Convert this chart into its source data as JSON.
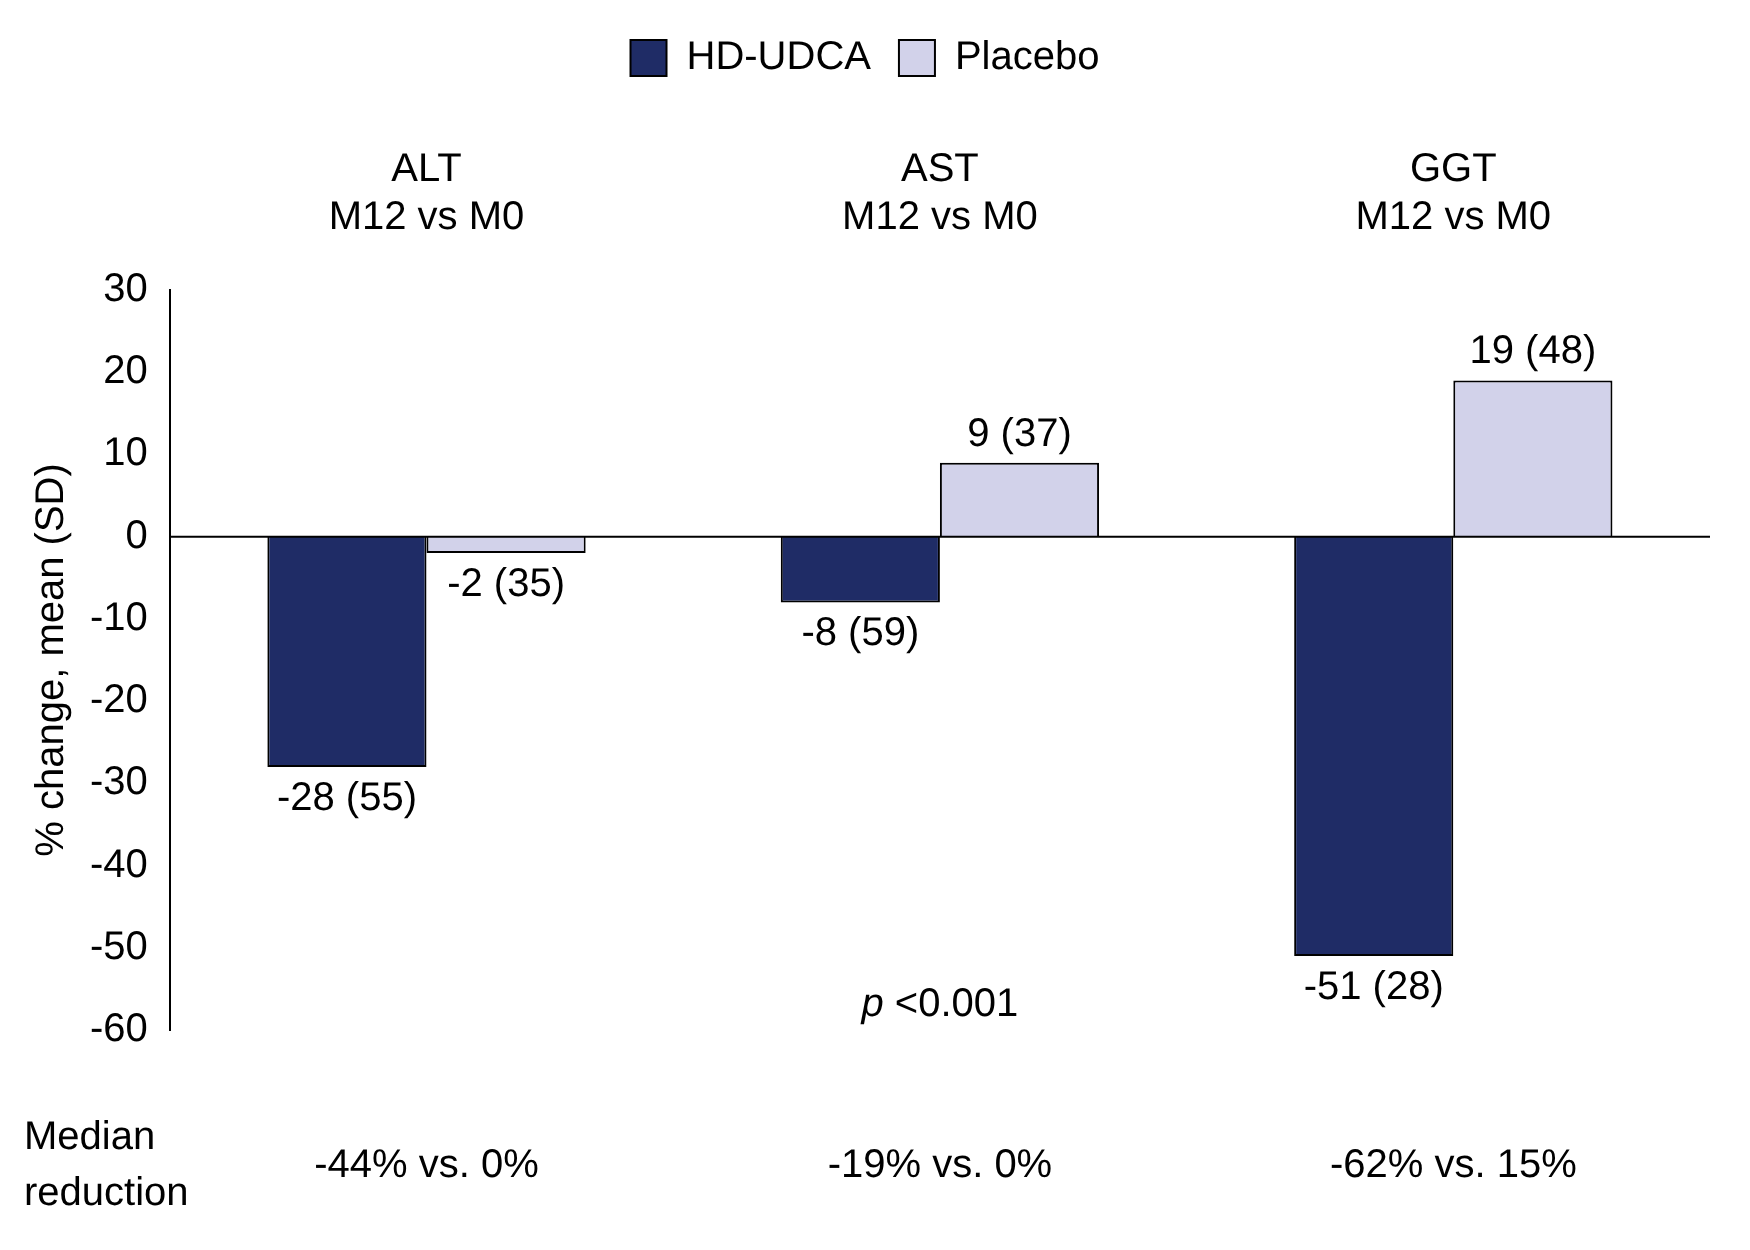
{
  "chart_data": {
    "type": "bar",
    "ylabel": "% change, mean (SD)",
    "categories": [
      "ALT\nM12 vs M0",
      "AST\nM12 vs M0",
      "GGT\nM12 vs M0"
    ],
    "series": [
      {
        "name": "HD-UDCA",
        "color": "#1f2c66",
        "values": [
          -28,
          -8,
          -51
        ],
        "value_labels": [
          "-28 (55)",
          "-8 (59)",
          "-51 (28)"
        ]
      },
      {
        "name": "Placebo",
        "color": "#d2d2ea",
        "values": [
          -2,
          9,
          19
        ],
        "value_labels": [
          "-2 (35)",
          "9 (37)",
          "19 (48)"
        ]
      }
    ],
    "ylim": [
      -60,
      30
    ],
    "yticks": [
      -60,
      -50,
      -40,
      -30,
      -20,
      -10,
      0,
      10,
      20,
      30
    ],
    "legend": "top",
    "annotations": [
      "Median reduction",
      "-44% vs. 0%",
      "-19% vs. 0%",
      "-62% vs. 15%",
      "p <0.001"
    ]
  }
}
